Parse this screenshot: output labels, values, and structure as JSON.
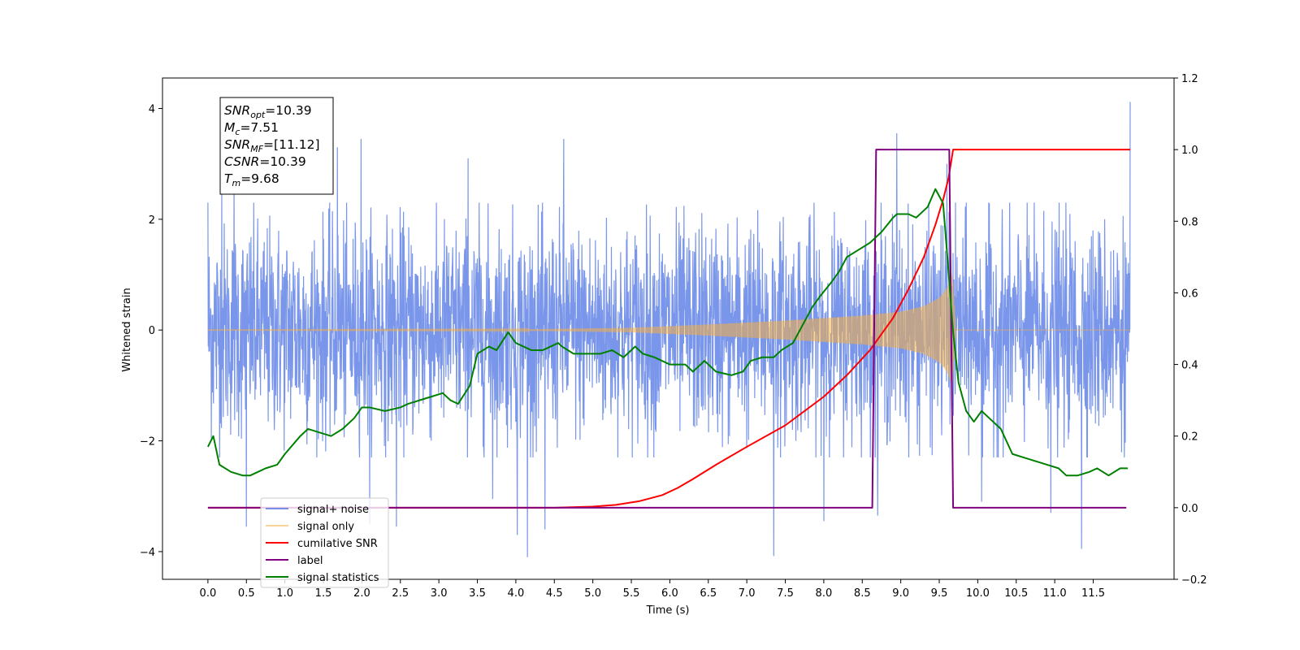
{
  "chart_data": {
    "type": "line",
    "title": "",
    "xlabel": "Time (s)",
    "ylabel": "Whitened strain",
    "xlim": [
      -0.59,
      12.55
    ],
    "ylim": [
      -4.5,
      4.55
    ],
    "y2lim": [
      -0.2,
      1.2
    ],
    "x_ticks": [
      "0.0",
      "0.5",
      "1.0",
      "1.5",
      "2.0",
      "2.5",
      "3.0",
      "3.5",
      "4.0",
      "4.5",
      "5.0",
      "5.5",
      "6.0",
      "6.5",
      "7.0",
      "7.5",
      "8.0",
      "8.5",
      "9.0",
      "9.5",
      "10.0",
      "10.5",
      "11.0",
      "11.5"
    ],
    "y_ticks": [
      "4",
      "2",
      "0",
      "−2",
      "−4"
    ],
    "y2_ticks": [
      "1.2",
      "1.0",
      "0.8",
      "0.6",
      "0.4",
      "0.2",
      "0.0",
      "−0.2"
    ],
    "legend_location": "lower left",
    "annotation": {
      "lines": [
        {
          "main": "SNR",
          "sub": "opt",
          "rest": "=10.39"
        },
        {
          "main": "M",
          "sub": "c",
          "rest": "=7.51"
        },
        {
          "main": "SNR",
          "sub": "MF",
          "rest": "=[11.12]"
        },
        {
          "main": "CSNR",
          "sub": "",
          "rest": "=10.39"
        },
        {
          "main": "T",
          "sub": "m",
          "rest": "=9.68"
        }
      ]
    },
    "series": [
      {
        "name": "signal+ noise",
        "axis": "left",
        "color": "#4169e1",
        "opacity": 0.7,
        "kind": "noise",
        "x_range": [
          0.0,
          11.98
        ],
        "typical_range": [
          -2.3,
          2.3
        ],
        "extremes": [
          {
            "x": 0.0,
            "y": 2.3
          },
          {
            "x": 0.18,
            "y": 2.55
          },
          {
            "x": 0.34,
            "y": 3.0
          },
          {
            "x": 0.5,
            "y": -3.55
          },
          {
            "x": 1.68,
            "y": 3.3
          },
          {
            "x": 1.99,
            "y": 3.45
          },
          {
            "x": 2.1,
            "y": -3.5
          },
          {
            "x": 2.45,
            "y": -3.55
          },
          {
            "x": 3.38,
            "y": 3.1
          },
          {
            "x": 3.7,
            "y": -3.05
          },
          {
            "x": 4.02,
            "y": -3.7
          },
          {
            "x": 4.15,
            "y": -4.1
          },
          {
            "x": 4.38,
            "y": -3.6
          },
          {
            "x": 4.62,
            "y": 3.45
          },
          {
            "x": 7.35,
            "y": -4.08
          },
          {
            "x": 8.0,
            "y": -3.45
          },
          {
            "x": 8.7,
            "y": -3.35
          },
          {
            "x": 8.95,
            "y": 3.55
          },
          {
            "x": 9.6,
            "y": 3.0
          },
          {
            "x": 10.05,
            "y": -3.1
          },
          {
            "x": 10.95,
            "y": -3.3
          },
          {
            "x": 11.35,
            "y": -3.95
          },
          {
            "x": 11.98,
            "y": 4.12
          }
        ]
      },
      {
        "name": "signal only",
        "axis": "left",
        "color": "#f5b041",
        "opacity": 0.55,
        "kind": "chirp",
        "x_range": [
          0.0,
          11.98
        ],
        "envelope": [
          [
            0.0,
            0.003
          ],
          [
            4.0,
            0.01
          ],
          [
            5.5,
            0.04
          ],
          [
            6.5,
            0.1
          ],
          [
            7.5,
            0.17
          ],
          [
            8.5,
            0.26
          ],
          [
            9.0,
            0.33
          ],
          [
            9.3,
            0.43
          ],
          [
            9.5,
            0.58
          ],
          [
            9.6,
            0.75
          ],
          [
            9.67,
            1.0
          ],
          [
            9.72,
            0.0
          ],
          [
            11.98,
            0.0
          ]
        ]
      },
      {
        "name": "cumilative SNR",
        "axis": "right",
        "color": "#ff0000",
        "x": [
          0.0,
          4.5,
          5.0,
          5.3,
          5.6,
          5.9,
          6.1,
          6.3,
          6.6,
          7.0,
          7.5,
          8.0,
          8.3,
          8.6,
          8.9,
          9.1,
          9.3,
          9.45,
          9.55,
          9.62,
          9.68,
          11.98
        ],
        "y": [
          0.0,
          0.0,
          0.003,
          0.008,
          0.018,
          0.035,
          0.055,
          0.08,
          0.12,
          0.17,
          0.23,
          0.31,
          0.37,
          0.44,
          0.53,
          0.61,
          0.7,
          0.79,
          0.86,
          0.92,
          1.0,
          1.0
        ]
      },
      {
        "name": "label",
        "axis": "right",
        "color": "#800080",
        "x": [
          0.0,
          8.63,
          8.68,
          9.63,
          9.68,
          11.93
        ],
        "y": [
          0.0,
          0.0,
          1.0,
          1.0,
          0.0,
          0.0
        ]
      },
      {
        "name": "signal statistics",
        "axis": "right",
        "color": "#008000",
        "x": [
          0.0,
          0.07,
          0.15,
          0.3,
          0.45,
          0.55,
          0.65,
          0.75,
          0.9,
          1.0,
          1.2,
          1.3,
          1.45,
          1.6,
          1.75,
          1.9,
          2.0,
          2.1,
          2.3,
          2.5,
          2.6,
          2.75,
          2.9,
          3.05,
          3.15,
          3.25,
          3.4,
          3.5,
          3.65,
          3.75,
          3.9,
          4.0,
          4.1,
          4.2,
          4.35,
          4.45,
          4.55,
          4.6,
          4.75,
          4.9,
          5.1,
          5.25,
          5.4,
          5.55,
          5.65,
          5.8,
          6.0,
          6.2,
          6.3,
          6.45,
          6.6,
          6.8,
          6.95,
          7.05,
          7.2,
          7.35,
          7.45,
          7.6,
          7.75,
          7.85,
          7.95,
          8.1,
          8.2,
          8.3,
          8.45,
          8.6,
          8.75,
          8.9,
          8.95,
          9.1,
          9.2,
          9.3,
          9.35,
          9.45,
          9.55,
          9.62,
          9.68,
          9.75,
          9.85,
          9.95,
          10.05,
          10.15,
          10.3,
          10.45,
          10.6,
          10.75,
          10.9,
          11.05,
          11.15,
          11.3,
          11.45,
          11.55,
          11.7,
          11.85,
          11.95
        ],
        "y": [
          0.17,
          0.2,
          0.12,
          0.1,
          0.09,
          0.09,
          0.1,
          0.11,
          0.12,
          0.15,
          0.2,
          0.22,
          0.21,
          0.2,
          0.22,
          0.25,
          0.28,
          0.28,
          0.27,
          0.28,
          0.29,
          0.3,
          0.31,
          0.32,
          0.3,
          0.29,
          0.34,
          0.43,
          0.45,
          0.44,
          0.49,
          0.46,
          0.45,
          0.44,
          0.44,
          0.45,
          0.46,
          0.45,
          0.43,
          0.43,
          0.43,
          0.44,
          0.42,
          0.45,
          0.43,
          0.42,
          0.4,
          0.4,
          0.38,
          0.41,
          0.38,
          0.37,
          0.38,
          0.41,
          0.42,
          0.42,
          0.44,
          0.46,
          0.52,
          0.56,
          0.59,
          0.63,
          0.66,
          0.7,
          0.72,
          0.74,
          0.77,
          0.81,
          0.82,
          0.82,
          0.81,
          0.83,
          0.84,
          0.89,
          0.85,
          0.66,
          0.49,
          0.35,
          0.27,
          0.24,
          0.27,
          0.25,
          0.22,
          0.15,
          0.14,
          0.13,
          0.12,
          0.11,
          0.09,
          0.09,
          0.1,
          0.11,
          0.09,
          0.11,
          0.11
        ]
      }
    ]
  }
}
